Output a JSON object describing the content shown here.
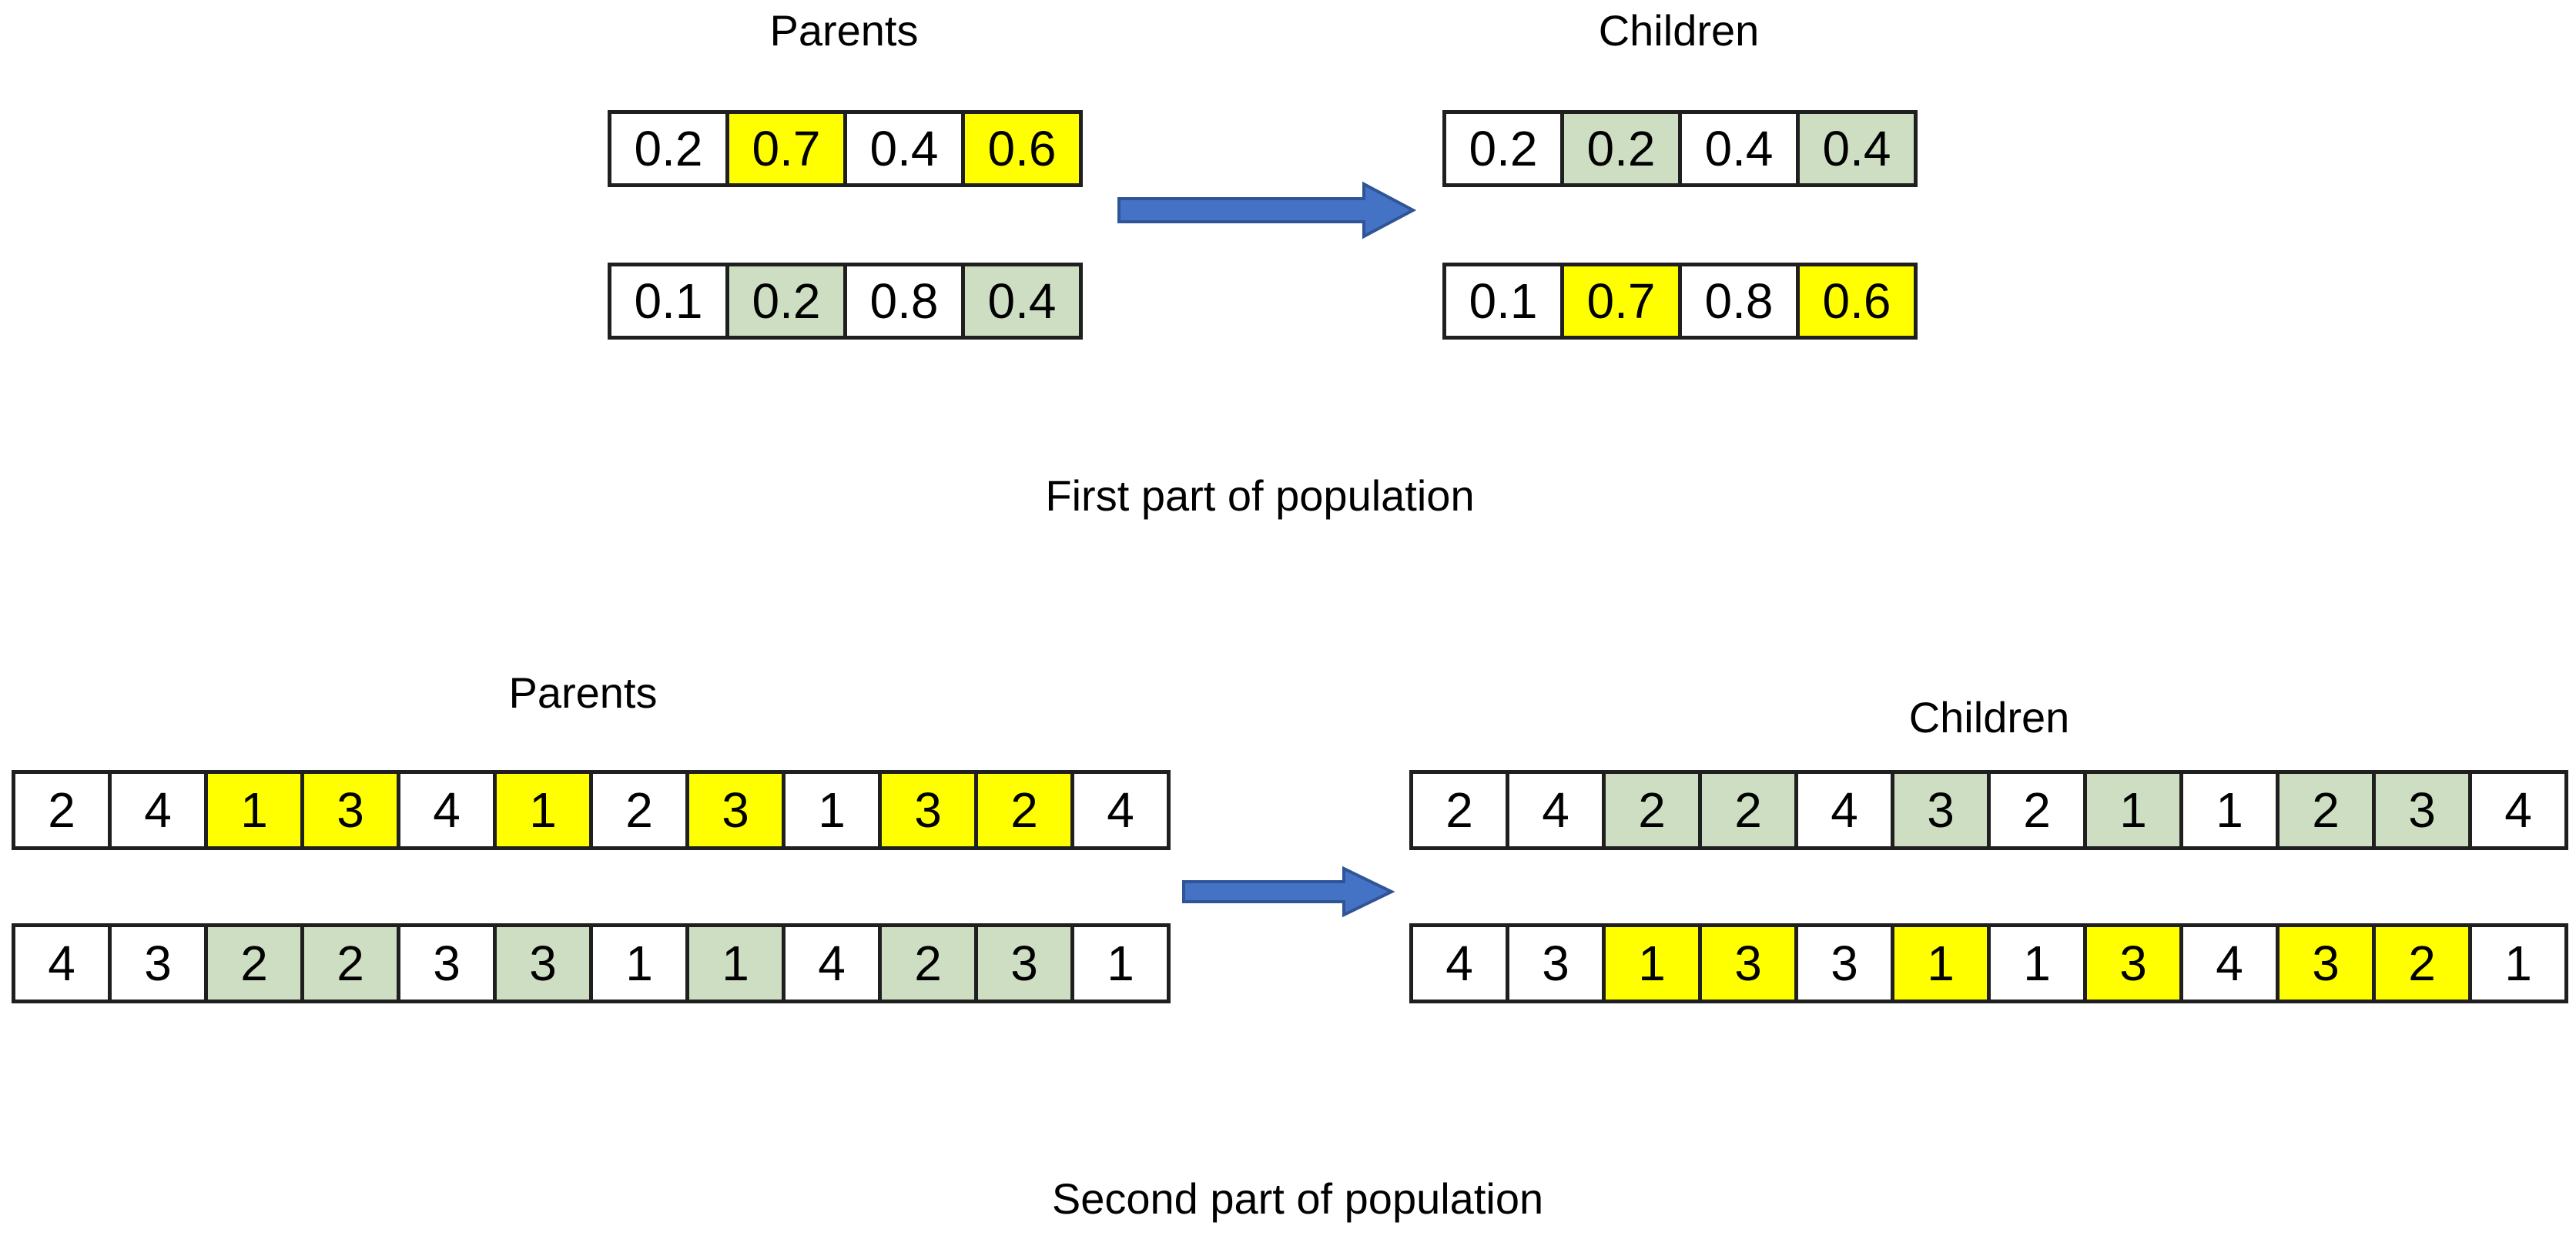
{
  "colors": {
    "background": "#FFFFFF",
    "text": "#000000",
    "border": "#1F1F1F",
    "yellow": "#FFFF00",
    "green": "#CDDEC2",
    "arrow_fill": "#4472C4",
    "arrow_stroke": "#2F5597"
  },
  "first_part": {
    "parents_label": "Parents",
    "children_label": "Children",
    "caption": "First part of population",
    "parents": [
      {
        "cells": [
          {
            "v": "0.2",
            "hl": "none"
          },
          {
            "v": "0.7",
            "hl": "yellow"
          },
          {
            "v": "0.4",
            "hl": "none"
          },
          {
            "v": "0.6",
            "hl": "yellow"
          }
        ]
      },
      {
        "cells": [
          {
            "v": "0.1",
            "hl": "none"
          },
          {
            "v": "0.2",
            "hl": "green"
          },
          {
            "v": "0.8",
            "hl": "none"
          },
          {
            "v": "0.4",
            "hl": "green"
          }
        ]
      }
    ],
    "children": [
      {
        "cells": [
          {
            "v": "0.2",
            "hl": "none"
          },
          {
            "v": "0.2",
            "hl": "green"
          },
          {
            "v": "0.4",
            "hl": "none"
          },
          {
            "v": "0.4",
            "hl": "green"
          }
        ]
      },
      {
        "cells": [
          {
            "v": "0.1",
            "hl": "none"
          },
          {
            "v": "0.7",
            "hl": "yellow"
          },
          {
            "v": "0.8",
            "hl": "none"
          },
          {
            "v": "0.6",
            "hl": "yellow"
          }
        ]
      }
    ]
  },
  "second_part": {
    "parents_label": "Parents",
    "children_label": "Children",
    "caption": "Second part of population",
    "parents": [
      {
        "cells": [
          {
            "v": "2",
            "hl": "none"
          },
          {
            "v": "4",
            "hl": "none"
          },
          {
            "v": "1",
            "hl": "yellow"
          },
          {
            "v": "3",
            "hl": "yellow"
          },
          {
            "v": "4",
            "hl": "none"
          },
          {
            "v": "1",
            "hl": "yellow"
          },
          {
            "v": "2",
            "hl": "none"
          },
          {
            "v": "3",
            "hl": "yellow"
          },
          {
            "v": "1",
            "hl": "none"
          },
          {
            "v": "3",
            "hl": "yellow"
          },
          {
            "v": "2",
            "hl": "yellow"
          },
          {
            "v": "4",
            "hl": "none"
          }
        ]
      },
      {
        "cells": [
          {
            "v": "4",
            "hl": "none"
          },
          {
            "v": "3",
            "hl": "none"
          },
          {
            "v": "2",
            "hl": "green"
          },
          {
            "v": "2",
            "hl": "green"
          },
          {
            "v": "3",
            "hl": "none"
          },
          {
            "v": "3",
            "hl": "green"
          },
          {
            "v": "1",
            "hl": "none"
          },
          {
            "v": "1",
            "hl": "green"
          },
          {
            "v": "4",
            "hl": "none"
          },
          {
            "v": "2",
            "hl": "green"
          },
          {
            "v": "3",
            "hl": "green"
          },
          {
            "v": "1",
            "hl": "none"
          }
        ]
      }
    ],
    "children": [
      {
        "cells": [
          {
            "v": "2",
            "hl": "none"
          },
          {
            "v": "4",
            "hl": "none"
          },
          {
            "v": "2",
            "hl": "green"
          },
          {
            "v": "2",
            "hl": "green"
          },
          {
            "v": "4",
            "hl": "none"
          },
          {
            "v": "3",
            "hl": "green"
          },
          {
            "v": "2",
            "hl": "none"
          },
          {
            "v": "1",
            "hl": "green"
          },
          {
            "v": "1",
            "hl": "none"
          },
          {
            "v": "2",
            "hl": "green"
          },
          {
            "v": "3",
            "hl": "green"
          },
          {
            "v": "4",
            "hl": "none"
          }
        ]
      },
      {
        "cells": [
          {
            "v": "4",
            "hl": "none"
          },
          {
            "v": "3",
            "hl": "none"
          },
          {
            "v": "1",
            "hl": "yellow"
          },
          {
            "v": "3",
            "hl": "yellow"
          },
          {
            "v": "3",
            "hl": "none"
          },
          {
            "v": "1",
            "hl": "yellow"
          },
          {
            "v": "1",
            "hl": "none"
          },
          {
            "v": "3",
            "hl": "yellow"
          },
          {
            "v": "4",
            "hl": "none"
          },
          {
            "v": "3",
            "hl": "yellow"
          },
          {
            "v": "2",
            "hl": "yellow"
          },
          {
            "v": "1",
            "hl": "none"
          }
        ]
      }
    ]
  }
}
